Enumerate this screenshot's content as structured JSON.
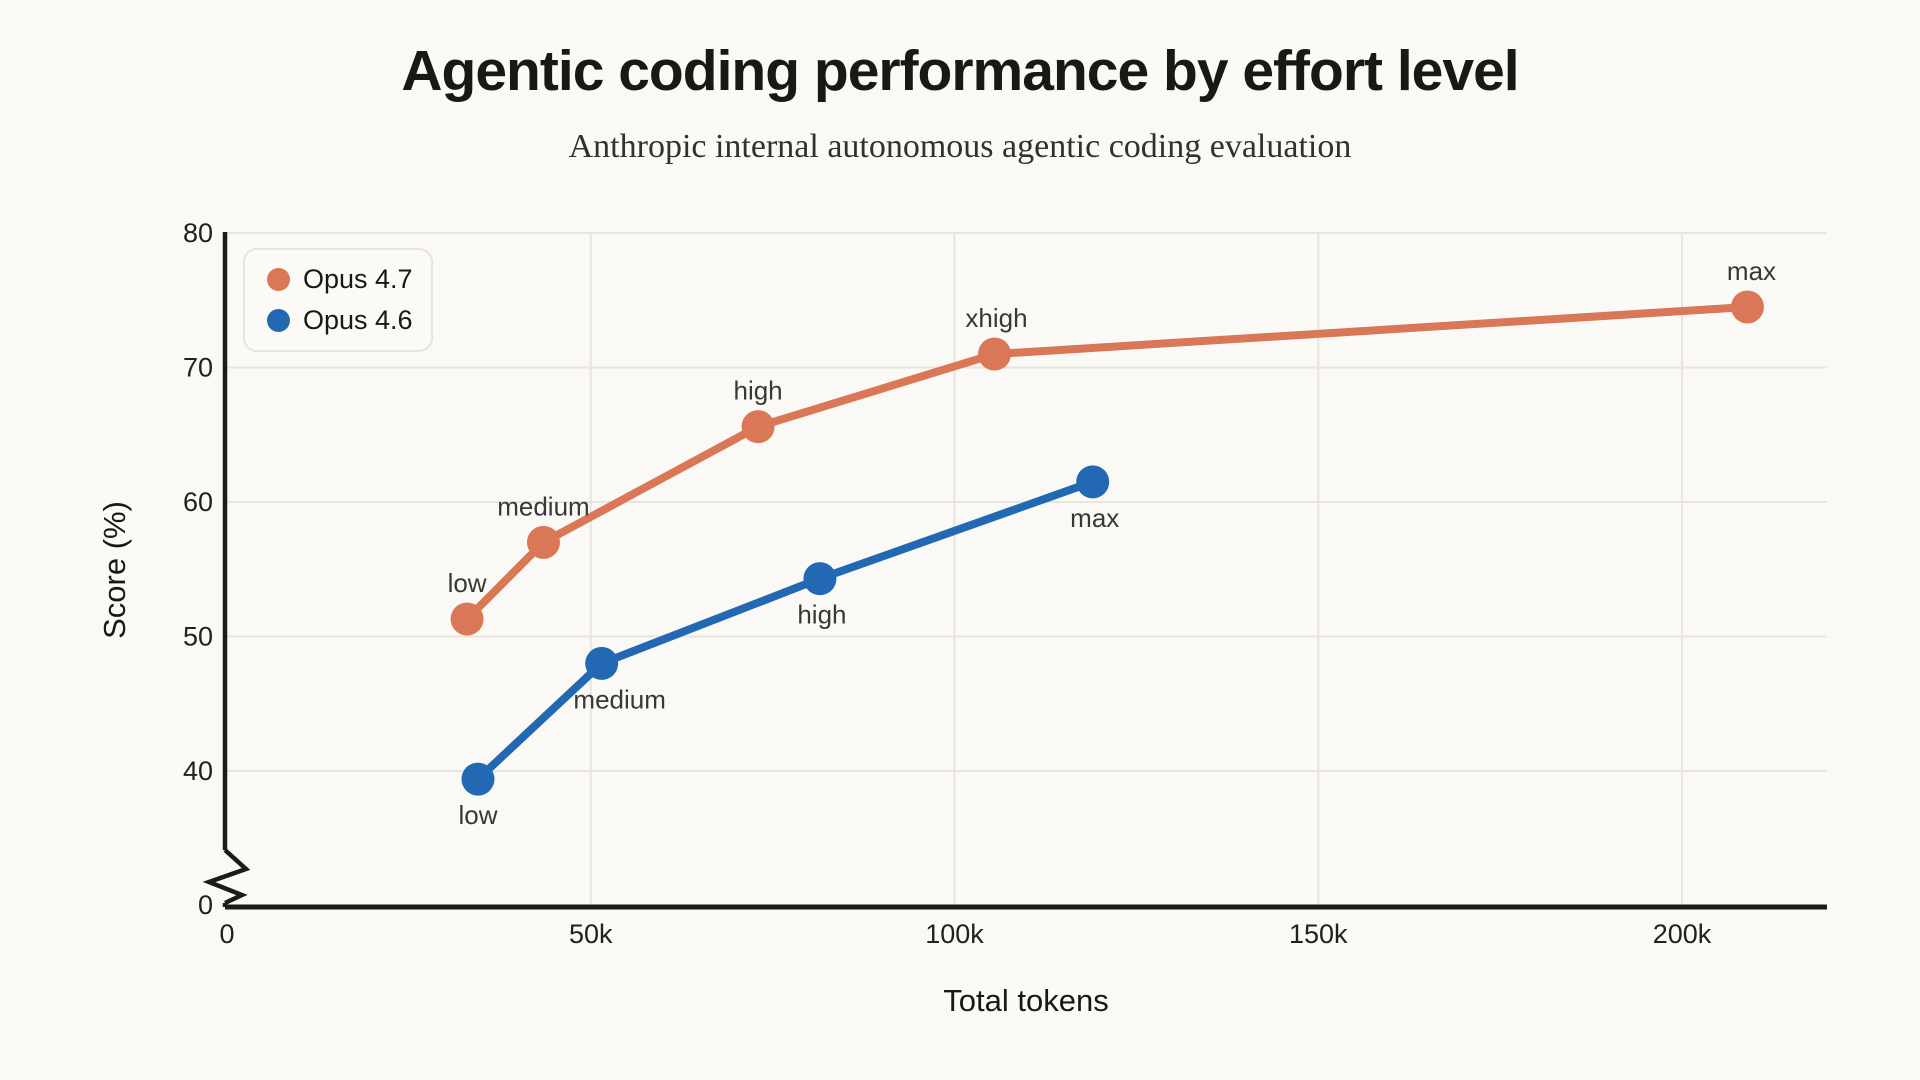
{
  "title": "Agentic coding performance by effort level",
  "subtitle": "Anthropic internal autonomous agentic coding evaluation",
  "chart_data": {
    "type": "line",
    "title": "Agentic coding performance by effort level",
    "subtitle": "Anthropic internal autonomous agentic coding evaluation",
    "xlabel": "Total tokens",
    "ylabel": "Score (%)",
    "x_unit": "tokens, thousands",
    "xlim": [
      0,
      220
    ],
    "ylim": [
      0,
      80
    ],
    "y_axis_break": "between 0 and 40",
    "grid": true,
    "legend_position": "top-left",
    "x_ticks": [
      {
        "value": 0,
        "label": "0"
      },
      {
        "value": 50,
        "label": "50k"
      },
      {
        "value": 100,
        "label": "100k"
      },
      {
        "value": 150,
        "label": "150k"
      },
      {
        "value": 200,
        "label": "200k"
      }
    ],
    "y_ticks": [
      {
        "value": 0,
        "label": "0"
      },
      {
        "value": 40,
        "label": "40"
      },
      {
        "value": 50,
        "label": "50"
      },
      {
        "value": 60,
        "label": "60"
      },
      {
        "value": 70,
        "label": "70"
      },
      {
        "value": 80,
        "label": "80"
      }
    ],
    "series": [
      {
        "name": "Opus 4.7",
        "color": "#d97757",
        "points": [
          {
            "x": 33,
            "y": 51.3,
            "label": "low",
            "label_pos": "above",
            "label_dx": 0
          },
          {
            "x": 43.5,
            "y": 57.0,
            "label": "medium",
            "label_pos": "above",
            "label_dx": 0
          },
          {
            "x": 73,
            "y": 65.6,
            "label": "high",
            "label_pos": "above",
            "label_dx": 0
          },
          {
            "x": 105.5,
            "y": 71.0,
            "label": "xhigh",
            "label_pos": "above",
            "label_dx": 2
          },
          {
            "x": 209,
            "y": 74.5,
            "label": "max",
            "label_pos": "above",
            "label_dx": 4
          }
        ]
      },
      {
        "name": "Opus 4.6",
        "color": "#2268b2",
        "points": [
          {
            "x": 34.5,
            "y": 39.4,
            "label": "low",
            "label_pos": "below",
            "label_dx": 0
          },
          {
            "x": 51.5,
            "y": 48.0,
            "label": "medium",
            "label_pos": "below",
            "label_dx": 18
          },
          {
            "x": 81.5,
            "y": 54.3,
            "label": "high",
            "label_pos": "below",
            "label_dx": 2
          },
          {
            "x": 119,
            "y": 61.5,
            "label": "max",
            "label_pos": "below",
            "label_dx": 2
          }
        ]
      }
    ],
    "colors": {
      "background": "#faf9f5",
      "gridline": "#e8e5dc",
      "axis": "#1c1b19",
      "tick_label": "#22211f",
      "point_label": "#3a3834"
    }
  }
}
